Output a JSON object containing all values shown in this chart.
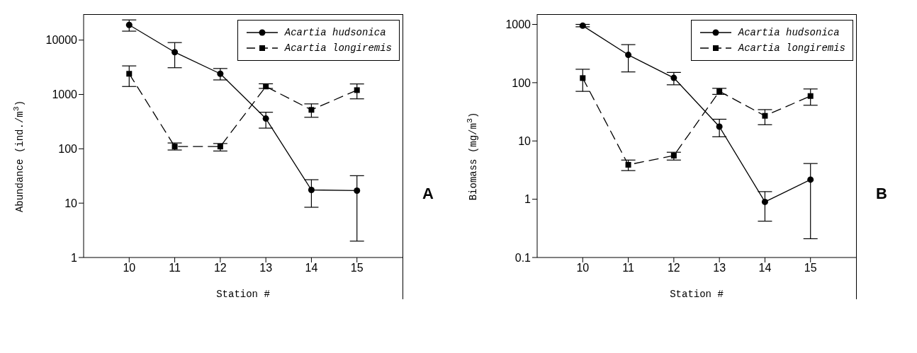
{
  "chart_data": [
    {
      "type": "line",
      "xlabel": "Station #",
      "ylabel": "Abundance (ind./m$^{3}$)",
      "annotations": [
        "A"
      ],
      "log": true,
      "legend": "top right",
      "x": [
        10,
        11,
        12,
        13,
        14,
        15
      ],
      "xlim": [
        9,
        16
      ],
      "xticks": [
        10,
        11,
        12,
        13,
        14,
        15
      ],
      "ylim": [
        1,
        30000
      ],
      "yticks": [
        1,
        10,
        100,
        1000,
        10000
      ],
      "series": [
        {
          "name": "Acartia hudsonica",
          "color": "#000000",
          "marker": "circle",
          "line_style": "solid",
          "values": [
            19000,
            6000,
            2400,
            360,
            17.5,
            17
          ],
          "errors": [
            [
              14600,
              23500
            ],
            [
              3100,
              9000
            ],
            [
              1850,
              3000
            ],
            [
              240,
              470
            ],
            [
              8.4,
              27
            ],
            [
              2,
              32
            ]
          ]
        },
        {
          "name": "Acartia longiremis",
          "color": "#000000",
          "marker": "square",
          "line_style": "dashed",
          "values": [
            2400,
            110,
            110,
            1400,
            520,
            1200
          ],
          "errors": [
            [
              1400,
              3350
            ],
            [
              95,
              128
            ],
            [
              91,
              125
            ],
            [
              1290,
              1570
            ],
            [
              380,
              670
            ],
            [
              830,
              1560
            ]
          ]
        }
      ]
    },
    {
      "type": "line",
      "xlabel": "Station #",
      "ylabel": "Biomass (mg/m$^{3}$)",
      "annotations": [
        "B"
      ],
      "log": true,
      "legend": "top right",
      "x": [
        10,
        11,
        12,
        13,
        14,
        15
      ],
      "xlim": [
        9,
        16
      ],
      "xticks": [
        10,
        11,
        12,
        13,
        14,
        15
      ],
      "ylim": [
        0.1,
        1500
      ],
      "yticks": [
        0.1,
        1,
        10,
        100,
        1000
      ],
      "series": [
        {
          "name": "Acartia hudsonica",
          "color": "#000000",
          "marker": "circle",
          "line_style": "solid",
          "values": [
            950,
            300,
            121,
            17.6,
            0.9,
            2.17
          ],
          "errors": [
            [
              910,
              1000
            ],
            [
              153,
              450
            ],
            [
              92,
              150
            ],
            [
              11.8,
              23.6
            ],
            [
              0.42,
              1.35
            ],
            [
              0.21,
              4.1
            ]
          ]
        },
        {
          "name": "Acartia longiremis",
          "color": "#000000",
          "marker": "square",
          "line_style": "dashed",
          "values": [
            120,
            3.9,
            5.6,
            71,
            27,
            59
          ],
          "errors": [
            [
              71,
              170
            ],
            [
              3.1,
              4.7
            ],
            [
              4.7,
              6.4
            ],
            [
              63,
              80
            ],
            [
              19,
              34.5
            ],
            [
              41,
              78
            ]
          ]
        }
      ]
    }
  ]
}
